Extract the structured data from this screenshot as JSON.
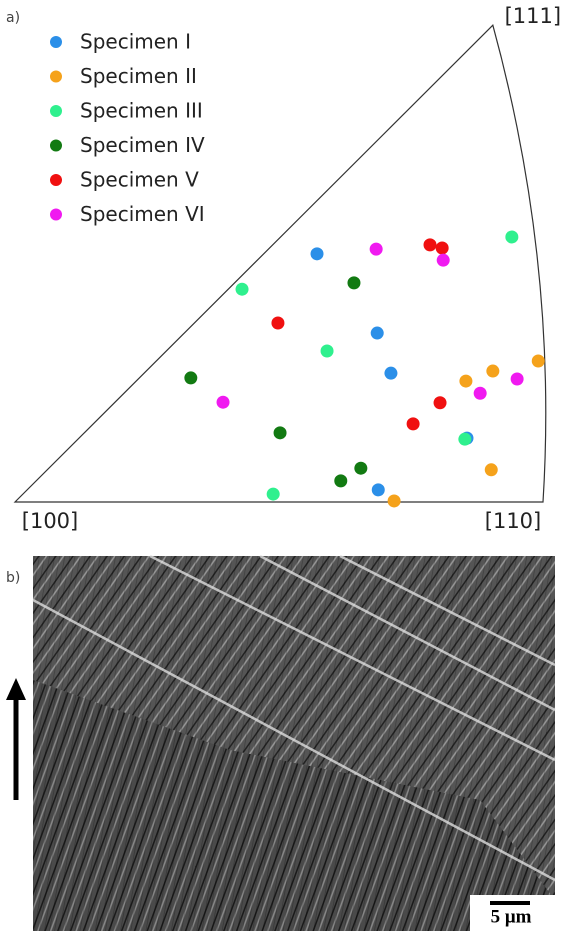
{
  "chart_data": {
    "type": "scatter",
    "panel_label": "a)",
    "corners": [
      {
        "label": "[100]",
        "x": 0,
        "y": 0
      },
      {
        "label": "[110]",
        "x": 1,
        "y": 0
      },
      {
        "label": "[111]",
        "x": 0.905,
        "y": 0.903
      }
    ],
    "series": [
      {
        "name": "Specimen I",
        "color": "#2b8fe8",
        "x": [
          0.572,
          0.686,
          0.712,
          0.856,
          0.688
        ],
        "values": [
          0.47,
          0.32,
          0.244,
          0.121,
          0.023
        ]
      },
      {
        "name": "Specimen II",
        "color": "#f5a21b",
        "x": [
          0.718,
          0.854,
          0.905,
          0.991,
          0.902
        ],
        "values": [
          0.002,
          0.229,
          0.248,
          0.267,
          0.061
        ]
      },
      {
        "name": "Specimen III",
        "color": "#2ff08e",
        "x": [
          0.43,
          0.591,
          0.941,
          0.852,
          0.489
        ],
        "values": [
          0.403,
          0.286,
          0.502,
          0.119,
          0.015
        ]
      },
      {
        "name": "Specimen IV",
        "color": "#127a12",
        "x": [
          0.642,
          0.333,
          0.502,
          0.655,
          0.617
        ],
        "values": [
          0.415,
          0.235,
          0.131,
          0.064,
          0.04
        ]
      },
      {
        "name": "Specimen V",
        "color": "#f01010",
        "x": [
          0.498,
          0.786,
          0.809,
          0.805,
          0.754
        ],
        "values": [
          0.339,
          0.487,
          0.481,
          0.188,
          0.148
        ]
      },
      {
        "name": "Specimen VI",
        "color": "#f01af0",
        "x": [
          0.684,
          0.811,
          0.394,
          0.881,
          0.951
        ],
        "values": [
          0.479,
          0.458,
          0.189,
          0.206,
          0.233
        ]
      }
    ]
  },
  "image": {
    "panel_label": "b)",
    "scale_bar": "5 μm"
  }
}
